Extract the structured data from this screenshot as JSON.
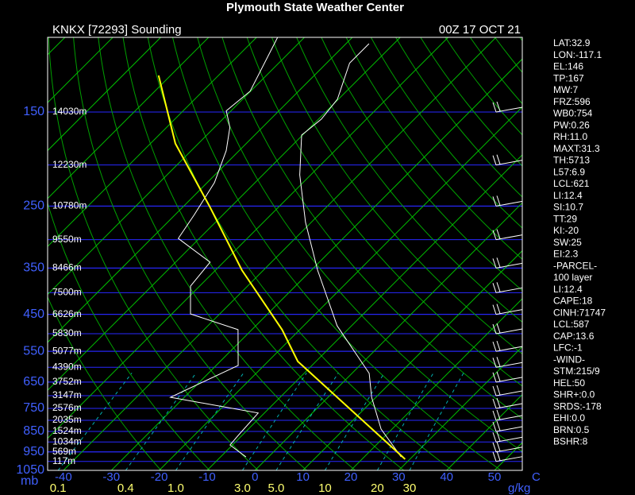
{
  "chart_data": {
    "type": "skewt",
    "title": "Plymouth State Weather Center",
    "subtitle": "KNKX [72293] Sounding",
    "date": "00Z 17 OCT 21",
    "ylim": [
      1050,
      100
    ],
    "yticks": [
      150,
      250,
      350,
      450,
      550,
      650,
      750,
      850,
      950,
      1050
    ],
    "y_unit": "mb",
    "xlim": [
      -43.3,
      55.8
    ],
    "xticks": [
      -40,
      -30,
      -20,
      -10,
      0,
      10,
      20,
      30,
      40,
      50
    ],
    "x_unit": "C",
    "mixing_ratio_ticks": [
      0.1,
      0.4,
      {
        "value": 1,
        "label": "1.0"
      },
      {
        "value": 3,
        "label": "3.0"
      },
      {
        "value": 5,
        "label": "5.0"
      },
      10,
      20,
      30
    ],
    "mixing_ratio_unit": "g/kg",
    "pressure_levels": [
      150,
      200,
      250,
      300,
      350,
      400,
      450,
      500,
      550,
      600,
      650,
      700,
      750,
      800,
      850,
      900,
      950,
      1000
    ],
    "height_labels": [
      "14030m",
      "12230m",
      "10780m",
      "9550m",
      "8466m",
      "7500m",
      "6626m",
      "5830m",
      "5077m",
      "4390m",
      "3752m",
      "3147m",
      "2576m",
      "2035m",
      "1524m",
      "1034m",
      "569m",
      "117m"
    ],
    "series": [
      {
        "color": "#ffffff",
        "pressure": [
          976,
          839,
          706,
          620,
          479,
          354,
          273,
          211,
          170,
          156,
          140,
          115,
          103.5
        ],
        "values": [
          27.7,
          17.7,
          9.1,
          3.6,
          -13,
          -28.7,
          -41.2,
          -52.3,
          -60.2,
          -59.4,
          -60.2,
          -65.2,
          -65.2
        ]
      },
      {
        "color": "#ffffff",
        "pressure": [
          976,
          915,
          868,
          769,
          706,
          594,
          489,
          449,
          386,
          339,
          298,
          262,
          220,
          185,
          163,
          149,
          134,
          100
        ],
        "values": [
          -4.7,
          -10.5,
          -10.8,
          -11.3,
          -32.9,
          -25.4,
          -32.9,
          -46.1,
          -51.9,
          -52.8,
          -64.4,
          -66,
          -68.5,
          -72.7,
          -76.8,
          -81,
          -80.1,
          -85.6
        ]
      },
      {
        "color": "#ffff00",
        "pressure": [
          988,
          581,
          489,
          354,
          251,
          178,
          123
        ],
        "values": [
          29,
          -13.8,
          -23.7,
          -44.5,
          -64.4,
          -84.8,
          -102.5
        ]
      }
    ],
    "stats": [
      "LAT:32.9",
      "LON:-117.1",
      "EL:146",
      "TP:167",
      "MW:7",
      "FRZ:596",
      "WB0:754",
      "PW:0.26",
      "RH:11.0",
      "MAXT:31.3",
      "TH:5713",
      "L57:6.9",
      "LCL:621",
      "LI:12.4",
      "SI:10.7",
      "TT:29",
      "KI:-20",
      "SW:25",
      "EI:2.3",
      "-PARCEL-",
      "100 layer",
      "LI:12.4",
      "CAPE:18",
      "CINH:71747",
      "LCL:587",
      "CAP:13.6",
      "LFC:-1",
      "-WIND-",
      "STM:215/9",
      "HEL:50",
      "SHR+:0.0",
      "SRDS:-178",
      "EHI:0.0",
      "BRN:0.5",
      "BSHR:8"
    ]
  }
}
